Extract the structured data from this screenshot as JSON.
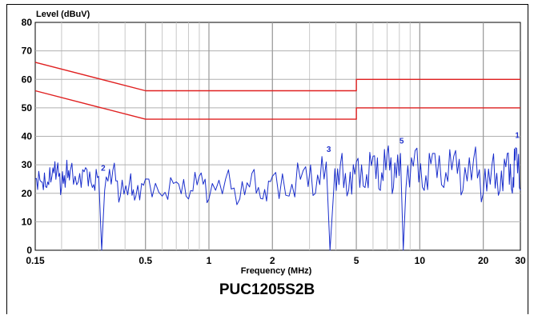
{
  "chart_data": {
    "type": "line",
    "title": "PUC1205S2B",
    "xlabel": "Frequency (MHz)",
    "ylabel": "Level (dBuV)",
    "x_scale": "log",
    "xlim": [
      0.15,
      30
    ],
    "ylim": [
      0,
      80
    ],
    "x_ticks": [
      0.15,
      0.5,
      1,
      2,
      5,
      10,
      20,
      30
    ],
    "x_tick_labels": [
      "0.15",
      "0.5",
      "1",
      "2",
      "5",
      "10",
      "20",
      "30"
    ],
    "y_ticks": [
      0,
      10,
      20,
      30,
      40,
      50,
      60,
      70,
      80
    ],
    "y_tick_labels": [
      "0",
      "10",
      "20",
      "30",
      "40",
      "50",
      "60",
      "70",
      "80"
    ],
    "grid": true,
    "colors": {
      "limit": "#e02020",
      "measurement": "#1a2ecc",
      "grid": "#c8c8c8"
    },
    "series": [
      {
        "values": [
          [
            0.15,
            66
          ],
          [
            0.5,
            56
          ],
          [
            5,
            56
          ],
          [
            5,
            60
          ],
          [
            30,
            60
          ]
        ]
      },
      {
        "values": [
          [
            0.15,
            56
          ],
          [
            0.5,
            46
          ],
          [
            5,
            46
          ],
          [
            5,
            50
          ],
          [
            30,
            50
          ]
        ]
      },
      {
        "values": [
          [
            0.15,
            25
          ],
          [
            0.16,
            24
          ],
          [
            0.17,
            22
          ],
          [
            0.18,
            26
          ],
          [
            0.19,
            28
          ],
          [
            0.2,
            22
          ],
          [
            0.21,
            27
          ],
          [
            0.22,
            28
          ],
          [
            0.24,
            24
          ],
          [
            0.26,
            29
          ],
          [
            0.28,
            22
          ],
          [
            0.3,
            26
          ],
          [
            0.31,
            0
          ],
          [
            0.32,
            21
          ],
          [
            0.35,
            28
          ],
          [
            0.38,
            19
          ],
          [
            0.42,
            24
          ],
          [
            0.45,
            19
          ],
          [
            0.5,
            25
          ],
          [
            0.6,
            19
          ],
          [
            0.7,
            24
          ],
          [
            0.8,
            18
          ],
          [
            0.9,
            26
          ],
          [
            1,
            18
          ],
          [
            1.2,
            25
          ],
          [
            1.4,
            18
          ],
          [
            1.6,
            27
          ],
          [
            1.8,
            18
          ],
          [
            2,
            26
          ],
          [
            2.4,
            19
          ],
          [
            2.8,
            28
          ],
          [
            3.2,
            20
          ],
          [
            3.6,
            31
          ],
          [
            3.75,
            0
          ],
          [
            3.9,
            20
          ],
          [
            4.2,
            30
          ],
          [
            4.6,
            21
          ],
          [
            5,
            31
          ],
          [
            5.5,
            22
          ],
          [
            6,
            33
          ],
          [
            6.5,
            21
          ],
          [
            7,
            34
          ],
          [
            7.5,
            22
          ],
          [
            8.1,
            34
          ],
          [
            8.35,
            0
          ],
          [
            8.6,
            22
          ],
          [
            9.5,
            35
          ],
          [
            10.5,
            21
          ],
          [
            11.5,
            34
          ],
          [
            13,
            22
          ],
          [
            14.5,
            33
          ],
          [
            16,
            21
          ],
          [
            18,
            32
          ],
          [
            20,
            20
          ],
          [
            22,
            30
          ],
          [
            24,
            21
          ],
          [
            26,
            34
          ],
          [
            27.5,
            20
          ],
          [
            28.5,
            36
          ],
          [
            30,
            21
          ]
        ]
      }
    ],
    "annotations": [
      {
        "text": "1",
        "x": 29,
        "y": 39.5
      },
      {
        "text": "2",
        "x": 0.315,
        "y": 28
      },
      {
        "text": "3",
        "x": 3.7,
        "y": 34.5
      },
      {
        "text": "5",
        "x": 8.2,
        "y": 37.5
      }
    ]
  }
}
